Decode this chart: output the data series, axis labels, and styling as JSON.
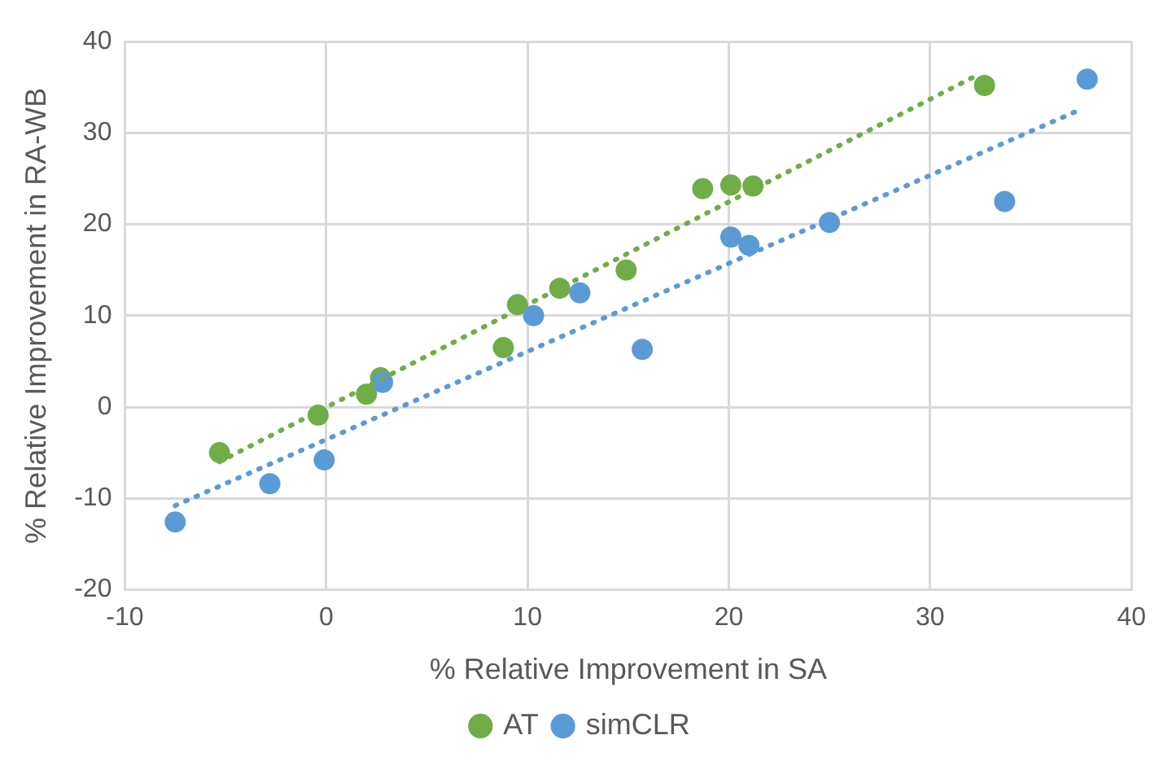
{
  "chart_data": {
    "type": "scatter",
    "xlabel": "% Relative Improvement in SA",
    "ylabel": "% Relative Improvement in RA-WB",
    "xlim": [
      -10,
      40
    ],
    "xticks": [
      -10,
      0,
      10,
      20,
      30,
      40
    ],
    "ylim": [
      -20,
      40
    ],
    "yticks": [
      -20,
      -10,
      0,
      10,
      20,
      30,
      40
    ],
    "grid": true,
    "legend": "bottom",
    "marker": "circle",
    "series": [
      {
        "name": "AT",
        "color": "#70ad47",
        "x": [
          -5.3,
          -0.4,
          2.0,
          2.7,
          8.8,
          9.5,
          11.6,
          14.9,
          18.7,
          20.1,
          21.2,
          32.7
        ],
        "values": [
          -5.0,
          -0.9,
          1.4,
          3.2,
          6.5,
          11.2,
          13.0,
          15.0,
          23.9,
          24.3,
          24.2,
          35.2
        ]
      },
      {
        "name": "simCLR",
        "color": "#5b9bd5",
        "x": [
          -7.5,
          -2.8,
          -0.1,
          2.8,
          10.3,
          12.6,
          15.7,
          20.1,
          21.0,
          25.0,
          33.7,
          37.8
        ],
        "values": [
          -12.6,
          -8.4,
          -5.8,
          2.7,
          10.0,
          12.5,
          6.3,
          18.6,
          17.7,
          20.2,
          22.5,
          35.9
        ]
      },
      {
        "type": "line",
        "color": "#70ad47",
        "line_style": "dotted",
        "marker": "none",
        "x": [
          -5.3,
          32.4
        ],
        "values": [
          -6.0,
          36.4
        ]
      },
      {
        "type": "line",
        "color": "#5b9bd5",
        "line_style": "dotted",
        "marker": "none",
        "x": [
          -7.5,
          37.5
        ],
        "values": [
          -10.8,
          32.6
        ]
      }
    ]
  }
}
